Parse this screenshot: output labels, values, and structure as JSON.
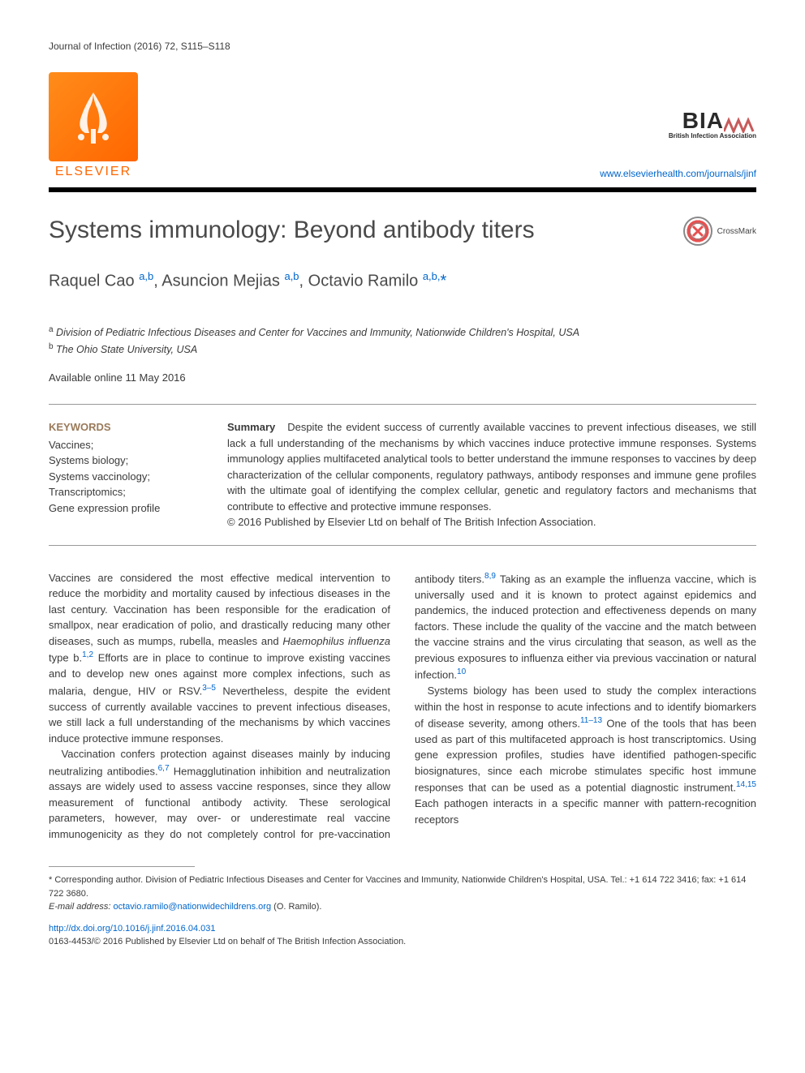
{
  "header": {
    "journal_citation": "Journal of Infection (2016) 72, S115–S118",
    "publisher_name": "ELSEVIER",
    "association_abbr": "BIA",
    "association_zigzag_color": "#c85a5a",
    "association_full": "British Infection Association",
    "journal_url": "www.elsevierhealth.com/journals/jinf"
  },
  "article": {
    "title": "Systems immunology: Beyond antibody titers",
    "crossmark_label": "CrossMark",
    "authors_html": "Raquel Cao <sup>a,b</sup>, Asuncion Mejias <sup>a,b</sup>, Octavio Ramilo <sup>a,b,</sup><span class='star'>*</span>",
    "affiliations": [
      {
        "key": "a",
        "text": "Division of Pediatric Infectious Diseases and Center for Vaccines and Immunity, Nationwide Children's Hospital, USA"
      },
      {
        "key": "b",
        "text": "The Ohio State University, USA"
      }
    ],
    "online_date": "Available online 11 May 2016"
  },
  "keywords": {
    "heading": "KEYWORDS",
    "items": [
      "Vaccines;",
      "Systems biology;",
      "Systems vaccinology;",
      "Transcriptomics;",
      "Gene expression profile"
    ]
  },
  "summary": {
    "heading": "Summary",
    "text": "Despite the evident success of currently available vaccines to prevent infectious diseases, we still lack a full understanding of the mechanisms by which vaccines induce protective immune responses. Systems immunology applies multifaceted analytical tools to better understand the immune responses to vaccines by deep characterization of the cellular components, regulatory pathways, antibody responses and immune gene profiles with the ultimate goal of identifying the complex cellular, genetic and regulatory factors and mechanisms that contribute to effective and protective immune responses.",
    "copyright": "© 2016 Published by Elsevier Ltd on behalf of The British Infection Association."
  },
  "body": {
    "p1": "Vaccines are considered the most effective medical intervention to reduce the morbidity and mortality caused by infectious diseases in the last century. Vaccination has been responsible for the eradication of smallpox, near eradication of polio, and drastically reducing many other diseases, such as mumps, rubella, measles and ",
    "p1_em": "Haemophilus influenza",
    "p1b": " type b.",
    "p1_ref1": "1,2",
    "p1c": " Efforts are in place to continue to improve existing vaccines and to develop new ones against more complex infections, such as malaria, dengue, HIV or RSV.",
    "p1_ref2": "3–5",
    "p1d": " Nevertheless, despite the evident success of currently available vaccines to prevent infectious diseases, we still lack a full understanding of the mechanisms by which vaccines induce protective immune responses.",
    "p2": "Vaccination confers protection against diseases mainly by inducing neutralizing antibodies.",
    "p2_ref1": "6,7",
    "p2b": " Hemagglutination inhibition and neutralization assays are widely used to assess vaccine responses, since they allow measurement of functional antibody activity. These serological parameters, however, may over- or underestimate real vaccine immunogenicity as they do not completely control for pre-vaccination antibody titers.",
    "p2_ref2": "8,9",
    "p2c": " Taking as an example the influenza vaccine, which is universally used and it is known to protect against epidemics and pandemics, the induced protection and effectiveness depends on many factors. These include the quality of the vaccine and the match between the vaccine strains and the virus circulating that season, as well as the previous exposures to influenza either via previous vaccination or natural infection.",
    "p2_ref3": "10",
    "p3": "Systems biology has been used to study the complex interactions within the host in response to acute infections and to identify biomarkers of disease severity, among others.",
    "p3_ref1": "11–13",
    "p3b": " One of the tools that has been used as part of this multifaceted approach is host transcriptomics. Using gene expression profiles, studies have identified pathogen-specific biosignatures, since each microbe stimulates specific host immune responses that can be used as a potential diagnostic instrument.",
    "p3_ref2": "14,15",
    "p3c": " Each pathogen interacts in a specific manner with pattern-recognition receptors"
  },
  "footer": {
    "corresponding": "* Corresponding author. Division of Pediatric Infectious Diseases and Center for Vaccines and Immunity, Nationwide Children's Hospital, USA. Tel.: +1 614 722 3416; fax: +1 614 722 3680.",
    "email_label": "E-mail address:",
    "email": "octavio.ramilo@nationwidechildrens.org",
    "email_attrib": "(O. Ramilo).",
    "doi": "http://dx.doi.org/10.1016/j.jinf.2016.04.031",
    "issn_line": "0163-4453/© 2016 Published by Elsevier Ltd on behalf of The British Infection Association."
  },
  "colors": {
    "link": "#0066cc",
    "elsevier_orange": "#ff6600",
    "keyword_heading": "#9a7a5a",
    "text": "#3a3a3a",
    "rule": "#999999"
  },
  "typography": {
    "title_size_pt": 30,
    "author_size_pt": 20,
    "body_size_pt": 13,
    "footer_size_pt": 11,
    "header_size_pt": 12
  }
}
